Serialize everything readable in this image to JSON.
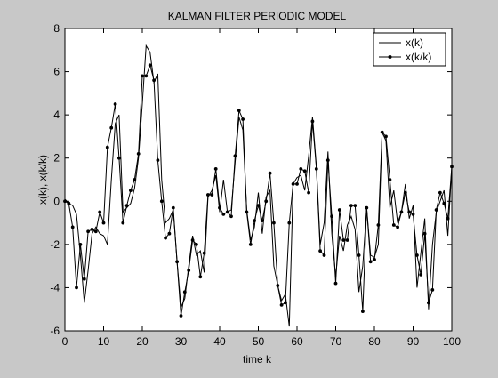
{
  "chart_data": {
    "type": "line",
    "title": "KALMAN FILTER PERIODIC MODEL",
    "xlabel": "time k",
    "ylabel": "x(k), x(k/k)",
    "xlim": [
      0,
      100
    ],
    "ylim": [
      -6,
      8
    ],
    "x_ticks": [
      0,
      10,
      20,
      30,
      40,
      50,
      60,
      70,
      80,
      90,
      100
    ],
    "y_ticks": [
      -6,
      -4,
      -2,
      0,
      2,
      4,
      6,
      8
    ],
    "grid": false,
    "legend_position": "top-right",
    "series": [
      {
        "name": "x(k)",
        "marker": "none",
        "color": "#000000",
        "x": [
          0,
          1,
          2,
          3,
          4,
          5,
          6,
          7,
          8,
          9,
          10,
          11,
          12,
          13,
          14,
          15,
          16,
          17,
          18,
          19,
          20,
          21,
          22,
          23,
          24,
          25,
          26,
          27,
          28,
          29,
          30,
          31,
          32,
          33,
          34,
          35,
          36,
          37,
          38,
          39,
          40,
          41,
          42,
          43,
          44,
          45,
          46,
          47,
          48,
          49,
          50,
          51,
          52,
          53,
          54,
          55,
          56,
          57,
          58,
          59,
          60,
          61,
          62,
          63,
          64,
          65,
          66,
          67,
          68,
          69,
          70,
          71,
          72,
          73,
          74,
          75,
          76,
          77,
          78,
          79,
          80,
          81,
          82,
          83,
          84,
          85,
          86,
          87,
          88,
          89,
          90,
          91,
          92,
          93,
          94,
          95,
          96,
          97,
          98,
          99,
          100
        ],
        "y": [
          0.1,
          -0.1,
          -0.2,
          -0.6,
          -2.5,
          -4.7,
          -3.2,
          -1.5,
          -1.2,
          -1.5,
          -1.6,
          -2.0,
          1.0,
          3.6,
          4.0,
          -0.5,
          -0.3,
          -0.1,
          0.6,
          2.0,
          4.5,
          7.2,
          6.9,
          5.5,
          5.9,
          1.0,
          -1.0,
          -0.8,
          -0.4,
          -2.8,
          -4.9,
          -4.5,
          -3.0,
          -1.6,
          -2.5,
          -2.3,
          -3.3,
          0.2,
          0.5,
          1.2,
          -0.5,
          1.0,
          -0.5,
          -0.4,
          1.8,
          3.9,
          3.3,
          -0.4,
          -1.8,
          -1.2,
          0.4,
          -1.5,
          0.2,
          0.5,
          -3.0,
          -3.9,
          -4.6,
          -4.3,
          -5.8,
          0.8,
          1.1,
          1.2,
          0.5,
          2.1,
          3.9,
          1.6,
          -2.0,
          -1.0,
          2.3,
          -1.5,
          -3.5,
          -1.6,
          -2.3,
          -1.1,
          -0.7,
          -1.3,
          -4.2,
          -3.0,
          -0.3,
          -2.5,
          -2.6,
          -2.0,
          3.2,
          2.8,
          -0.3,
          0.5,
          -1.0,
          -0.5,
          0.8,
          -0.8,
          -0.2,
          -4.0,
          -2.4,
          -0.8,
          -5.0,
          -2.0,
          -0.5,
          0.0,
          0.5,
          -1.6,
          1.6
        ]
      },
      {
        "name": "x(k/k)",
        "marker": "dot",
        "color": "#000000",
        "x": [
          0,
          1,
          2,
          3,
          4,
          5,
          6,
          7,
          8,
          9,
          10,
          11,
          12,
          13,
          14,
          15,
          16,
          17,
          18,
          19,
          20,
          21,
          22,
          23,
          24,
          25,
          26,
          27,
          28,
          29,
          30,
          31,
          32,
          33,
          34,
          35,
          36,
          37,
          38,
          39,
          40,
          41,
          42,
          43,
          44,
          45,
          46,
          47,
          48,
          49,
          50,
          51,
          52,
          53,
          54,
          55,
          56,
          57,
          58,
          59,
          60,
          61,
          62,
          63,
          64,
          65,
          66,
          67,
          68,
          69,
          70,
          71,
          72,
          73,
          74,
          75,
          76,
          77,
          78,
          79,
          80,
          81,
          82,
          83,
          84,
          85,
          86,
          87,
          88,
          89,
          90,
          91,
          92,
          93,
          94,
          95,
          96,
          97,
          98,
          99,
          100
        ],
        "y": [
          0.0,
          -0.1,
          -1.2,
          -4.0,
          -2.0,
          -3.6,
          -1.4,
          -1.3,
          -1.4,
          -0.5,
          -1.0,
          2.5,
          3.4,
          4.5,
          2.0,
          -1.0,
          -0.2,
          0.5,
          1.0,
          2.2,
          5.8,
          5.8,
          6.3,
          5.6,
          1.9,
          0.0,
          -1.7,
          -1.5,
          -0.3,
          -2.8,
          -5.3,
          -4.2,
          -3.2,
          -1.8,
          -2.0,
          -3.5,
          -2.4,
          0.3,
          0.3,
          1.5,
          -0.3,
          -0.6,
          -0.5,
          -0.7,
          2.1,
          4.2,
          3.8,
          -0.5,
          -2.0,
          -0.9,
          -0.2,
          -0.9,
          0.0,
          1.3,
          -1.0,
          -3.9,
          -4.8,
          -4.7,
          -1.0,
          0.8,
          0.8,
          1.5,
          1.4,
          0.4,
          3.7,
          1.5,
          -2.3,
          -2.5,
          1.9,
          -0.7,
          -3.8,
          -0.4,
          -1.8,
          -1.8,
          -0.2,
          -0.2,
          -2.5,
          -5.1,
          -0.3,
          -2.8,
          -2.7,
          -1.1,
          3.2,
          3.0,
          1.0,
          -1.1,
          -1.2,
          -0.5,
          0.4,
          -0.5,
          -0.6,
          -2.5,
          -3.4,
          -1.5,
          -4.7,
          -4.1,
          -0.4,
          0.4,
          -0.1,
          -0.8,
          1.6
        ]
      }
    ]
  }
}
